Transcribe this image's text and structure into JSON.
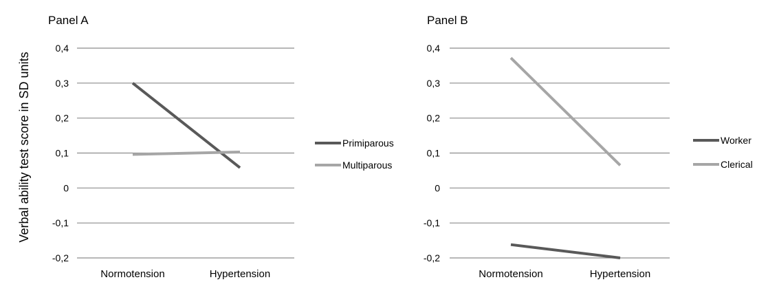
{
  "figure": {
    "ylabel": "Verbal ability test score in SD units"
  },
  "chart_data": [
    {
      "type": "line",
      "title": "Panel A",
      "xlabel": "",
      "ylabel": "Verbal ability test score in SD units",
      "categories": [
        "Normotension",
        "Hypertension"
      ],
      "ylim": [
        -0.2,
        0.4
      ],
      "yticks": [
        "0,4",
        "0,3",
        "0,2",
        "0,1",
        "0",
        "-0,1",
        "-0,2"
      ],
      "grid": true,
      "legend": "right",
      "series": [
        {
          "name": "Primiparous",
          "values": [
            0.3,
            0.058
          ],
          "color": "#595959"
        },
        {
          "name": "Multiparous",
          "values": [
            0.096,
            0.103
          ],
          "color": "#a6a6a6"
        }
      ]
    },
    {
      "type": "line",
      "title": "Panel B",
      "xlabel": "",
      "ylabel": "",
      "categories": [
        "Normotension",
        "Hypertension"
      ],
      "ylim": [
        -0.2,
        0.4
      ],
      "yticks": [
        "0,4",
        "0,3",
        "0,2",
        "0,1",
        "0",
        "-0,1",
        "-0,2"
      ],
      "grid": true,
      "legend": "right",
      "series": [
        {
          "name": "Worker",
          "values": [
            -0.162,
            -0.2
          ],
          "color": "#595959"
        },
        {
          "name": "Clerical",
          "values": [
            0.372,
            0.065
          ],
          "color": "#a6a6a6"
        }
      ]
    }
  ]
}
